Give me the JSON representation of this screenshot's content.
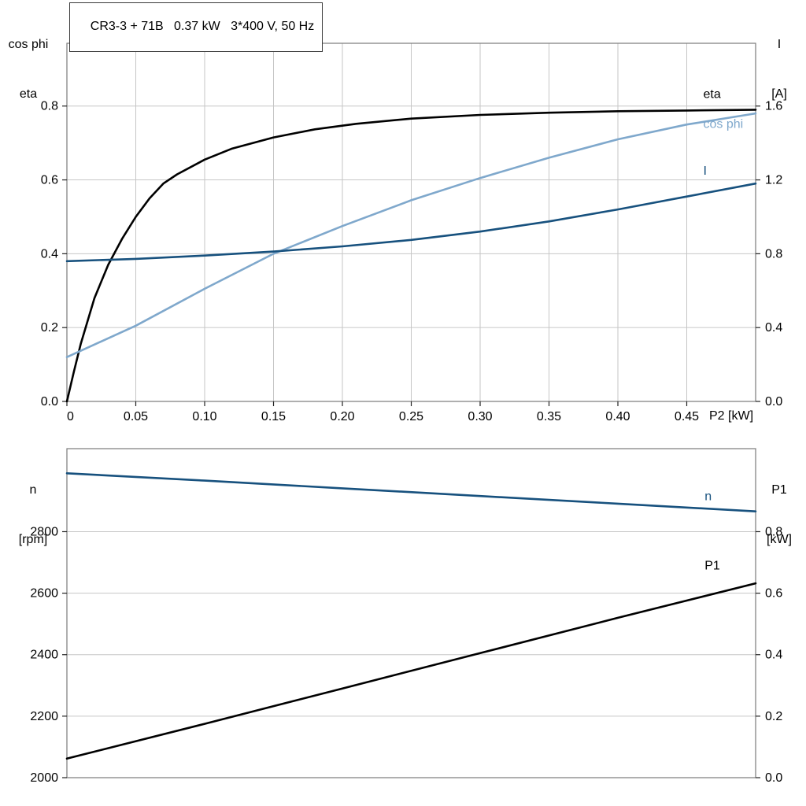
{
  "title_box": {
    "text": "CR3-3 + 71B   0.37 kW   3*400 V, 50 Hz"
  },
  "colors": {
    "black": "#000000",
    "dark_blue": "#17517e",
    "light_blue": "#7fa8cc",
    "grid": "#c6c6c6",
    "frame": "#7a7a7a",
    "tick": "#222222",
    "text": "#000000"
  },
  "chart_data": [
    {
      "type": "line",
      "id": "top",
      "title": "CR3-3 + 71B   0.37 kW   3*400 V, 50 Hz",
      "xlabel": "P2 [kW]",
      "x": {
        "lim": [
          0,
          0.5
        ],
        "grid": true,
        "ticks": [
          {
            "v": 0,
            "t": "0"
          },
          {
            "v": 0.05,
            "t": "0.05"
          },
          {
            "v": 0.1,
            "t": "0.10"
          },
          {
            "v": 0.15,
            "t": "0.15"
          },
          {
            "v": 0.2,
            "t": "0.20"
          },
          {
            "v": 0.25,
            "t": "0.25"
          },
          {
            "v": 0.3,
            "t": "0.30"
          },
          {
            "v": 0.35,
            "t": "0.35"
          },
          {
            "v": 0.4,
            "t": "0.40"
          },
          {
            "v": 0.45,
            "t": "0.45"
          }
        ]
      },
      "left_axis": {
        "label_lines": [
          "cos phi",
          "eta"
        ],
        "lim": [
          0,
          0.97
        ],
        "grid": true,
        "ticks": [
          {
            "v": 0.0,
            "t": "0.0"
          },
          {
            "v": 0.2,
            "t": "0.2"
          },
          {
            "v": 0.4,
            "t": "0.4"
          },
          {
            "v": 0.6,
            "t": "0.6"
          },
          {
            "v": 0.8,
            "t": "0.8"
          }
        ]
      },
      "right_axis": {
        "label_lines": [
          "I",
          "[A]"
        ],
        "lim": [
          0,
          1.94
        ],
        "ticks": [
          {
            "v": 0.0,
            "t": "0.0"
          },
          {
            "v": 0.4,
            "t": "0.4"
          },
          {
            "v": 0.8,
            "t": "0.8"
          },
          {
            "v": 1.2,
            "t": "1.2"
          },
          {
            "v": 1.6,
            "t": "1.6"
          }
        ]
      },
      "series": [
        {
          "name": "eta",
          "axis": "left",
          "color_key": "black",
          "label": "eta",
          "label_at": [
            0.462,
            0.832
          ],
          "points": [
            [
              0,
              0
            ],
            [
              0.005,
              0.08
            ],
            [
              0.01,
              0.155
            ],
            [
              0.02,
              0.28
            ],
            [
              0.03,
              0.37
            ],
            [
              0.04,
              0.44
            ],
            [
              0.05,
              0.5
            ],
            [
              0.06,
              0.55
            ],
            [
              0.07,
              0.59
            ],
            [
              0.08,
              0.615
            ],
            [
              0.1,
              0.655
            ],
            [
              0.12,
              0.685
            ],
            [
              0.15,
              0.715
            ],
            [
              0.18,
              0.737
            ],
            [
              0.21,
              0.752
            ],
            [
              0.25,
              0.766
            ],
            [
              0.3,
              0.776
            ],
            [
              0.35,
              0.782
            ],
            [
              0.4,
              0.786
            ],
            [
              0.45,
              0.788
            ],
            [
              0.5,
              0.79
            ]
          ]
        },
        {
          "name": "cos phi",
          "axis": "left",
          "color_key": "light_blue",
          "label": "cos phi",
          "label_at": [
            0.462,
            0.752
          ],
          "points": [
            [
              0,
              0.12
            ],
            [
              0.05,
              0.205
            ],
            [
              0.1,
              0.305
            ],
            [
              0.15,
              0.4
            ],
            [
              0.2,
              0.475
            ],
            [
              0.25,
              0.545
            ],
            [
              0.3,
              0.605
            ],
            [
              0.35,
              0.66
            ],
            [
              0.4,
              0.71
            ],
            [
              0.45,
              0.75
            ],
            [
              0.5,
              0.78
            ]
          ]
        },
        {
          "name": "I",
          "axis": "right",
          "color_key": "dark_blue",
          "label": "I",
          "label_at": [
            0.462,
            1.25
          ],
          "points": [
            [
              0,
              0.76
            ],
            [
              0.05,
              0.772
            ],
            [
              0.1,
              0.79
            ],
            [
              0.15,
              0.812
            ],
            [
              0.2,
              0.84
            ],
            [
              0.25,
              0.875
            ],
            [
              0.3,
              0.92
            ],
            [
              0.35,
              0.975
            ],
            [
              0.4,
              1.04
            ],
            [
              0.45,
              1.11
            ],
            [
              0.5,
              1.18
            ]
          ]
        }
      ]
    },
    {
      "type": "line",
      "id": "bottom",
      "title": "",
      "xlabel": "",
      "x": {
        "lim": [
          0,
          0.5
        ],
        "grid": false,
        "ticks": []
      },
      "left_axis": {
        "label_lines": [
          "n",
          "[rpm]"
        ],
        "lim": [
          2000,
          3070
        ],
        "grid": true,
        "ticks": [
          {
            "v": 2000,
            "t": "2000"
          },
          {
            "v": 2200,
            "t": "2200"
          },
          {
            "v": 2400,
            "t": "2400"
          },
          {
            "v": 2600,
            "t": "2600"
          },
          {
            "v": 2800,
            "t": "2800"
          }
        ]
      },
      "right_axis": {
        "label_lines": [
          "P1",
          "[kW]"
        ],
        "lim": [
          0,
          1.07
        ],
        "ticks": [
          {
            "v": 0.0,
            "t": "0.0"
          },
          {
            "v": 0.2,
            "t": "0.2"
          },
          {
            "v": 0.4,
            "t": "0.4"
          },
          {
            "v": 0.6,
            "t": "0.6"
          },
          {
            "v": 0.8,
            "t": "0.8"
          }
        ]
      },
      "series": [
        {
          "name": "n",
          "axis": "left",
          "color_key": "dark_blue",
          "label": "n",
          "label_at": [
            0.463,
            2915
          ],
          "points": [
            [
              0,
              2990
            ],
            [
              0.1,
              2966
            ],
            [
              0.2,
              2941
            ],
            [
              0.3,
              2916
            ],
            [
              0.4,
              2891
            ],
            [
              0.5,
              2866
            ]
          ]
        },
        {
          "name": "P1",
          "axis": "left_p1",
          "color_key": "black",
          "label": "P1",
          "label_at": [
            0.463,
            0.69
          ],
          "points": [
            [
              0,
              0.062
            ],
            [
              0.1,
              0.175
            ],
            [
              0.2,
              0.29
            ],
            [
              0.3,
              0.405
            ],
            [
              0.4,
              0.52
            ],
            [
              0.5,
              0.632
            ]
          ]
        }
      ]
    }
  ]
}
